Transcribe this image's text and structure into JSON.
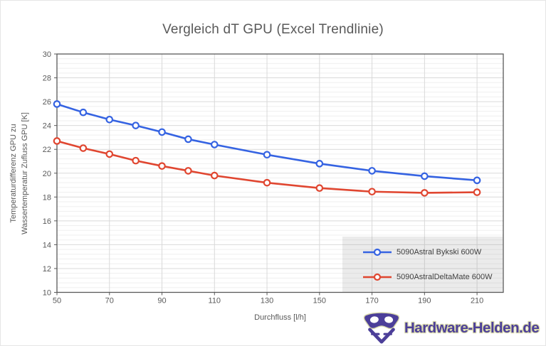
{
  "chart_data": {
    "type": "line",
    "title": "Vergleich dT GPU (Excel Trendlinie)",
    "xlabel": "Durchfluss [l/h]",
    "ylabel_lines": [
      "Temperaturdifferenz GPU zu",
      "Wassertemperatur Zufluss GPU [K]"
    ],
    "x": [
      50,
      60,
      70,
      80,
      90,
      100,
      110,
      130,
      150,
      170,
      190,
      210
    ],
    "series": [
      {
        "name": "5090Astral Bykski 600W",
        "color": "#3563E2",
        "values": [
          25.8,
          25.1,
          24.5,
          24.0,
          23.45,
          22.85,
          22.4,
          21.55,
          20.8,
          20.2,
          19.75,
          19.4
        ]
      },
      {
        "name": "5090AstralDeltaMate 600W",
        "color": "#E04630",
        "values": [
          22.7,
          22.1,
          21.6,
          21.05,
          20.6,
          20.2,
          19.8,
          19.2,
          18.75,
          18.45,
          18.35,
          18.4
        ]
      }
    ],
    "xlim": [
      50,
      220
    ],
    "ylim": [
      10,
      30
    ],
    "x_ticks": [
      50,
      70,
      90,
      110,
      130,
      150,
      170,
      190,
      210
    ],
    "y_ticks": [
      10,
      12,
      14,
      16,
      18,
      20,
      22,
      24,
      26,
      28,
      30
    ],
    "y_minor_unit": 0.4,
    "grid": true,
    "legend_position": "inside-bottom-right",
    "colors": {
      "major_grid": "#D9D9D9",
      "minor_grid": "#EFEFEF",
      "axis": "#595959",
      "tick_text": "#595959",
      "marker_fill": "#FFFFFF"
    }
  },
  "watermark": {
    "text": "Hardware-Helden.de",
    "logo": "hardware-helden-mask-logo",
    "purple": "#4C3F99",
    "outline": "#D9D9AC"
  }
}
